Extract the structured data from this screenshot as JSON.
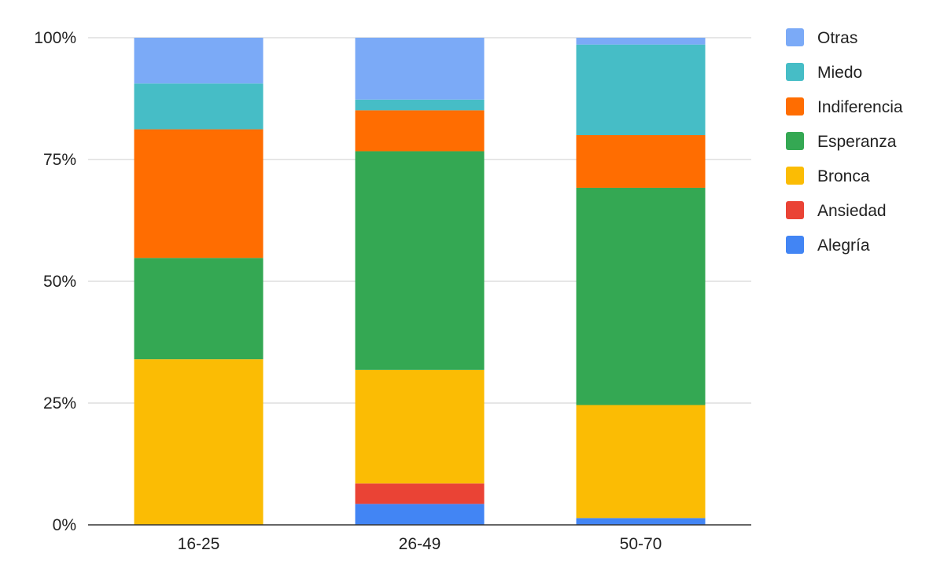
{
  "chart_data": {
    "type": "bar",
    "stacked": "percent",
    "categories": [
      "16-25",
      "26-49",
      "50-70"
    ],
    "series": [
      {
        "name": "Alegría",
        "color": "#4285f4",
        "values": [
          0.0,
          4.3,
          1.4
        ]
      },
      {
        "name": "Ansiedad",
        "color": "#ea4335",
        "values": [
          0.0,
          4.2,
          0.0
        ]
      },
      {
        "name": "Bronca",
        "color": "#fbbc04",
        "values": [
          34.0,
          23.3,
          23.2
        ]
      },
      {
        "name": "Esperanza",
        "color": "#34a853",
        "values": [
          20.8,
          44.9,
          44.6
        ]
      },
      {
        "name": "Indiferencia",
        "color": "#ff6d01",
        "values": [
          26.4,
          8.4,
          10.8
        ]
      },
      {
        "name": "Miedo",
        "color": "#46bdc6",
        "values": [
          9.4,
          2.2,
          18.6
        ]
      },
      {
        "name": "Otras",
        "color": "#7baaf7",
        "values": [
          9.4,
          12.7,
          1.4
        ]
      }
    ],
    "y_ticks": [
      "0%",
      "25%",
      "50%",
      "75%",
      "100%"
    ],
    "ylim": [
      0,
      100
    ],
    "grid": true,
    "legend_position": "right"
  }
}
